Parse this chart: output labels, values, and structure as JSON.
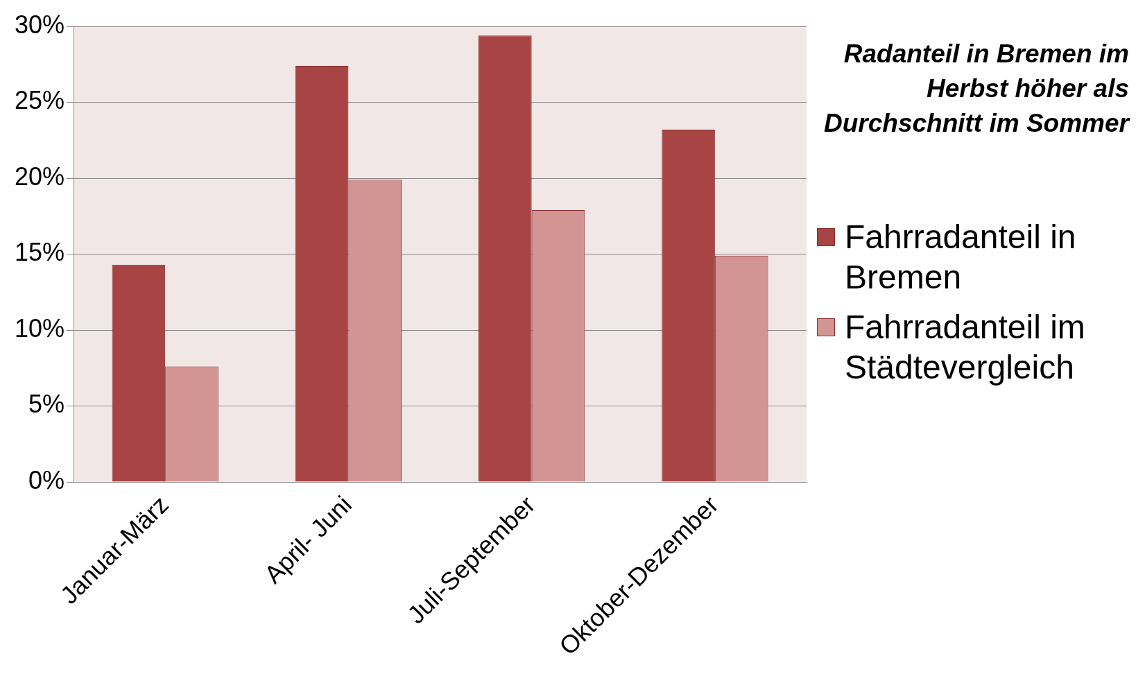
{
  "chart_data": {
    "type": "bar",
    "title": "Radanteil in Bremen im Herbst höher als Durchschnitt im Sommer",
    "categories": [
      "Januar-März",
      "April- Juni",
      "Juli-September",
      "Oktober-Dezember"
    ],
    "series": [
      {
        "name": "Fahrradanteil in Bremen",
        "color": "#a84444",
        "values": [
          14.3,
          27.4,
          29.4,
          23.2
        ]
      },
      {
        "name": "Fahrradanteil im Städtevergleich",
        "color": "#d39494",
        "values": [
          7.6,
          19.9,
          17.9,
          14.9
        ]
      }
    ],
    "ylim": [
      0,
      30
    ],
    "yticks": [
      {
        "value": 0,
        "label": "0%"
      },
      {
        "value": 5,
        "label": "5%"
      },
      {
        "value": 10,
        "label": "10%"
      },
      {
        "value": 15,
        "label": "15%"
      },
      {
        "value": 20,
        "label": "20%"
      },
      {
        "value": 25,
        "label": "25%"
      },
      {
        "value": 30,
        "label": "30%"
      }
    ],
    "grid": "y",
    "legend": "right"
  }
}
